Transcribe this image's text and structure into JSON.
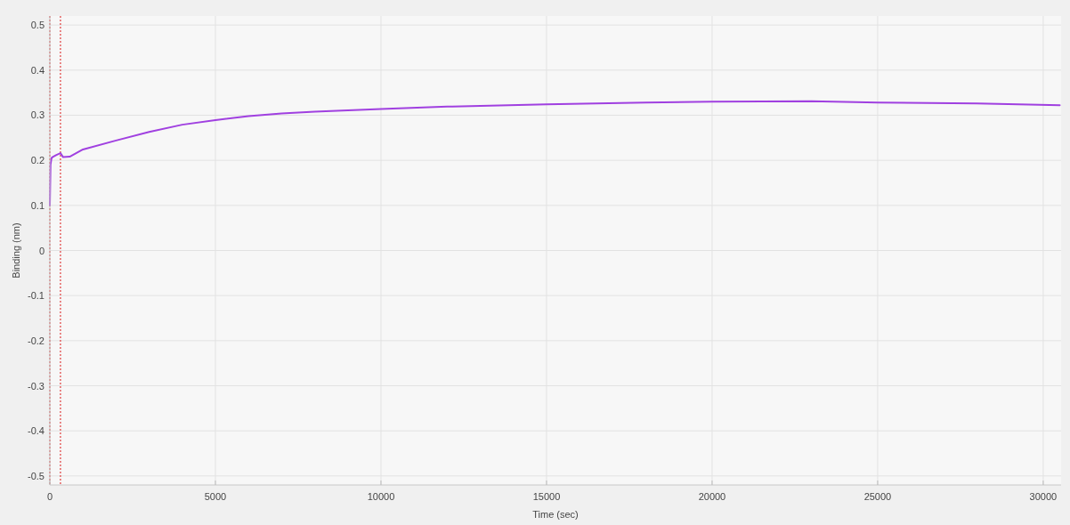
{
  "chart_data": {
    "type": "line",
    "xlabel": "Time (sec)",
    "ylabel": "Binding (nm)",
    "xlim": [
      0,
      30540
    ],
    "ylim": [
      -0.52,
      0.52
    ],
    "xticks": [
      0,
      5000,
      10000,
      15000,
      20000,
      25000,
      30000
    ],
    "yticks": [
      -0.5,
      -0.4,
      -0.3,
      -0.2,
      -0.1,
      0,
      0.1,
      0.2,
      0.3,
      0.4,
      0.5
    ],
    "grid": true,
    "line_style": "solid",
    "ref_lines": [
      {
        "axis": "x",
        "value": 0,
        "color": "#e03c3c",
        "line_style": "dotted"
      },
      {
        "axis": "x",
        "value": 320,
        "color": "#e03c3c",
        "line_style": "dotted"
      }
    ],
    "series": [
      {
        "color": "#a040e0",
        "x": [
          0,
          20,
          50,
          100,
          200,
          320,
          400,
          600,
          1000,
          2000,
          3000,
          4000,
          5000,
          6000,
          7000,
          8000,
          10000,
          12000,
          15000,
          18000,
          20000,
          23000,
          25000,
          28000,
          30500
        ],
        "values": [
          0.1,
          0.19,
          0.205,
          0.208,
          0.212,
          0.216,
          0.207,
          0.208,
          0.224,
          0.244,
          0.263,
          0.279,
          0.289,
          0.298,
          0.304,
          0.308,
          0.314,
          0.319,
          0.324,
          0.328,
          0.33,
          0.331,
          0.328,
          0.326,
          0.322
        ]
      }
    ]
  }
}
